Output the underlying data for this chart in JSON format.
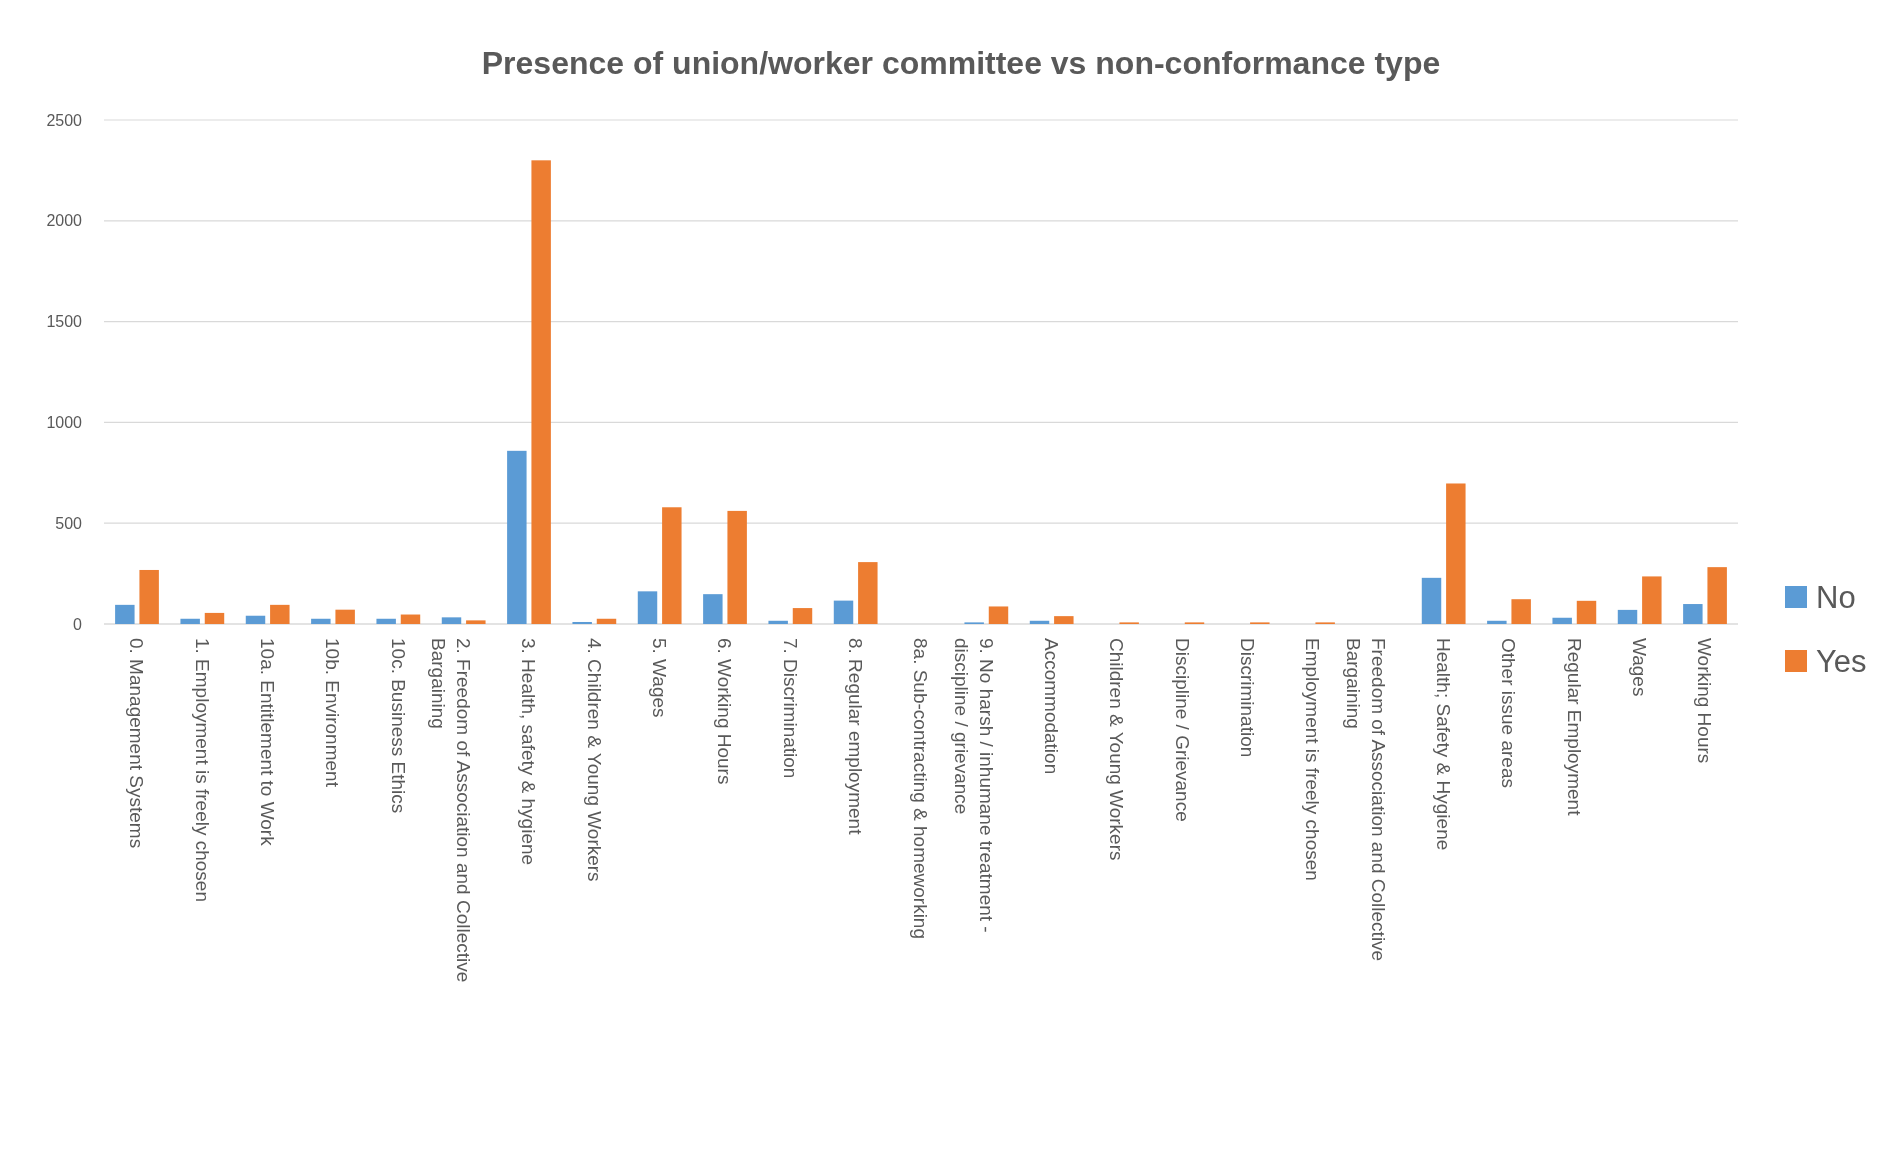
{
  "chart_data": {
    "type": "bar",
    "title": "Presence of union/worker committee vs non-conformance type",
    "categories": [
      "0. Management Systems",
      "1. Employment is freely chosen",
      "10a. Entitlement to Work",
      "10b. Environment",
      "10c. Business Ethics",
      "2. Freedom of Association and Collective Bargaining",
      "3. Health, safety & hygiene",
      "4. Children & Young Workers",
      "5. Wages",
      "6. Working Hours",
      "7. Discrimination",
      "8. Regular employment",
      "8a. Sub-contracting & homeworking",
      "9. No harsh / inhumane treatment - discipline / grievance",
      "Accommodation",
      "Children & Young Workers",
      "Discipline / Grievance",
      "Discrimination",
      "Employment is freely chosen",
      "Freedom of Association and Collective Bargaining",
      "Health; Safety & Hygiene",
      "Other issue areas",
      "Regular Employment",
      "Wages",
      "Working Hours"
    ],
    "series": [
      {
        "name": "No",
        "color": "#5b9bd5",
        "values": [
          95,
          26,
          41,
          26,
          26,
          33,
          859,
          10,
          162,
          148,
          16,
          116,
          0,
          8,
          16,
          0,
          0,
          0,
          0,
          0,
          229,
          16,
          31,
          70,
          99
        ]
      },
      {
        "name": "Yes",
        "color": "#ed7d31",
        "values": [
          268,
          55,
          95,
          71,
          47,
          18,
          2300,
          26,
          579,
          561,
          79,
          307,
          0,
          87,
          39,
          8,
          8,
          8,
          8,
          0,
          697,
          123,
          115,
          236,
          282
        ]
      }
    ],
    "ylim": [
      0,
      2500
    ],
    "yticks": [
      0,
      500,
      1000,
      1500,
      2000,
      2500
    ],
    "grid": "y",
    "legend": "right"
  }
}
